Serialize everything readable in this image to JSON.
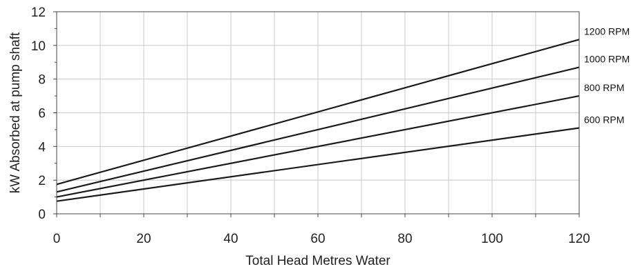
{
  "chart_data": {
    "type": "line",
    "title": "",
    "xlabel": "Total Head Metres Water",
    "ylabel": "kW Absorbed at pump shaft",
    "xlim": [
      0,
      120
    ],
    "ylim": [
      0,
      12
    ],
    "xticks": [
      "0",
      "20",
      "40",
      "60",
      "80",
      "100",
      "120"
    ],
    "yticks": [
      "0",
      "2",
      "4",
      "6",
      "8",
      "10",
      "12"
    ],
    "grid": true,
    "legend": "inline-right",
    "line_color": "#1a1a1a",
    "grid_color": "#c8c8c8",
    "series": [
      {
        "name": "1200 RPM",
        "x": [
          0,
          120
        ],
        "y": [
          1.75,
          10.35
        ]
      },
      {
        "name": "1000 RPM",
        "x": [
          0,
          120
        ],
        "y": [
          1.3,
          8.7
        ]
      },
      {
        "name": "800 RPM",
        "x": [
          0,
          120
        ],
        "y": [
          1.0,
          7.0
        ]
      },
      {
        "name": "600 RPM",
        "x": [
          0,
          120
        ],
        "y": [
          0.75,
          5.1
        ]
      }
    ]
  }
}
